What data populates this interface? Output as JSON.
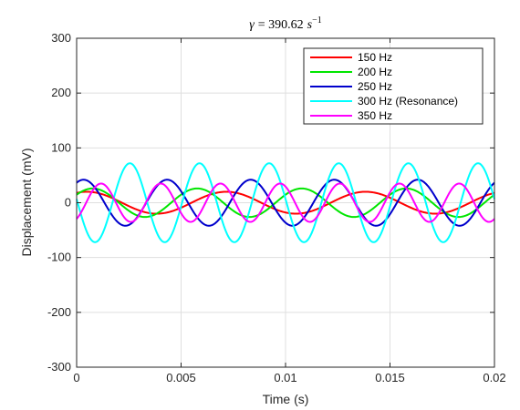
{
  "chart_data": {
    "type": "line",
    "title": {
      "lhs": "γ",
      "rhs": "= 390.62",
      "unit": "s",
      "exponent": "−1"
    },
    "xlabel": "Time (s)",
    "ylabel": "Displacement (mV)",
    "xlim": [
      0,
      0.02
    ],
    "ylim": [
      -300,
      300
    ],
    "xticks": [
      0,
      0.005,
      0.01,
      0.015,
      0.02
    ],
    "xtick_labels": [
      "0",
      "0.005",
      "0.01",
      "0.015",
      "0.02"
    ],
    "yticks": [
      -300,
      -200,
      -100,
      0,
      100,
      200,
      300
    ],
    "ytick_labels": [
      "-300",
      "-200",
      "-100",
      "0",
      "100",
      "200",
      "300"
    ],
    "grid": true,
    "legend_position": "top-right",
    "series": [
      {
        "name": "150 Hz",
        "color": "#ff0000",
        "frequency_hz": 150,
        "amplitude_mv": 20,
        "phase_rad": 1.1
      },
      {
        "name": "200 Hz",
        "color": "#00e600",
        "frequency_hz": 200,
        "amplitude_mv": 26,
        "phase_rad": 0.6
      },
      {
        "name": "250 Hz",
        "color": "#0000cc",
        "frequency_hz": 250,
        "amplitude_mv": 42,
        "phase_rad": 1.05
      },
      {
        "name": "300 Hz (Resonance)",
        "color": "#00ffff",
        "frequency_hz": 300,
        "amplitude_mv": 72,
        "phase_rad": 3.05
      },
      {
        "name": "350 Hz",
        "color": "#ff00ff",
        "frequency_hz": 350,
        "amplitude_mv": 35,
        "phase_rad": -1.0
      }
    ]
  }
}
